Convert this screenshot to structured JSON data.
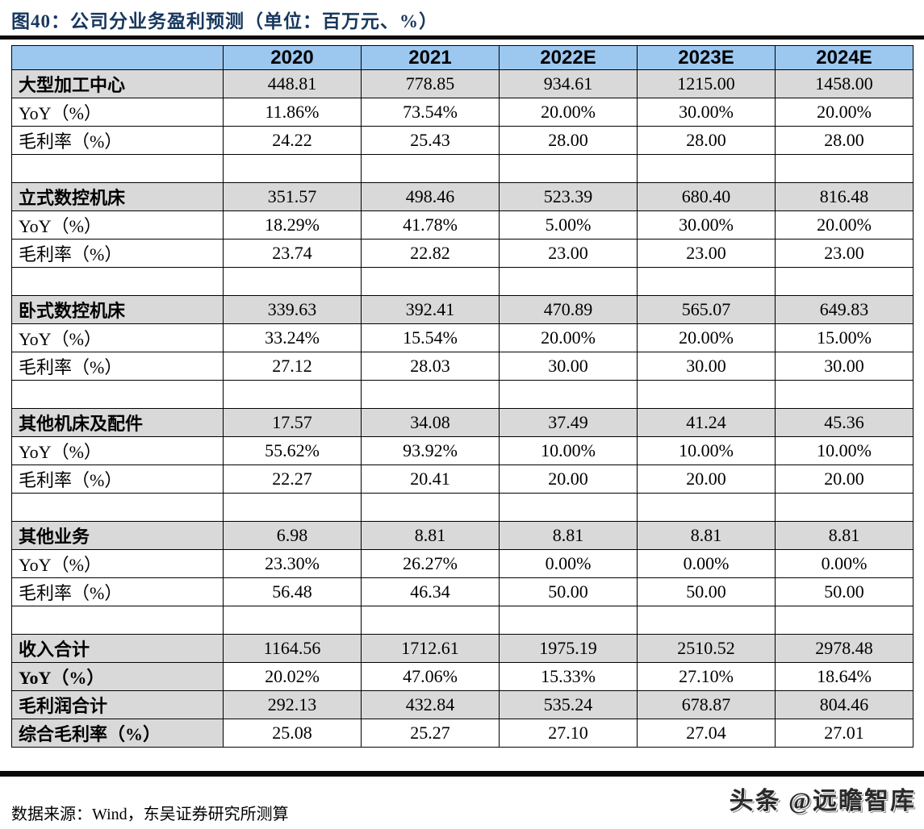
{
  "title": "图40：公司分业务盈利预测（单位：百万元、%）",
  "table": {
    "rows": [
      {
        "type": "header",
        "cells": [
          "",
          "2020",
          "2021",
          "2022E",
          "2023E",
          "2024E"
        ]
      },
      {
        "type": "section-head",
        "cells": [
          "大型加工中心",
          "448.81",
          "778.85",
          "934.61",
          "1215.00",
          "1458.00"
        ]
      },
      {
        "type": "data",
        "cells": [
          "YoY（%）",
          "11.86%",
          "73.54%",
          "20.00%",
          "30.00%",
          "20.00%"
        ]
      },
      {
        "type": "data",
        "cells": [
          "毛利率（%）",
          "24.22",
          "25.43",
          "28.00",
          "28.00",
          "28.00"
        ]
      },
      {
        "type": "spacer",
        "cells": [
          "",
          "",
          "",
          "",
          "",
          ""
        ]
      },
      {
        "type": "section-head",
        "cells": [
          "立式数控机床",
          "351.57",
          "498.46",
          "523.39",
          "680.40",
          "816.48"
        ]
      },
      {
        "type": "data",
        "cells": [
          "YoY（%）",
          "18.29%",
          "41.78%",
          "5.00%",
          "30.00%",
          "20.00%"
        ]
      },
      {
        "type": "data",
        "cells": [
          "毛利率（%）",
          "23.74",
          "22.82",
          "23.00",
          "23.00",
          "23.00"
        ]
      },
      {
        "type": "spacer",
        "cells": [
          "",
          "",
          "",
          "",
          "",
          ""
        ]
      },
      {
        "type": "section-head",
        "cells": [
          "卧式数控机床",
          "339.63",
          "392.41",
          "470.89",
          "565.07",
          "649.83"
        ]
      },
      {
        "type": "data",
        "cells": [
          "YoY（%）",
          "33.24%",
          "15.54%",
          "20.00%",
          "20.00%",
          "15.00%"
        ]
      },
      {
        "type": "data",
        "cells": [
          "毛利率（%）",
          "27.12",
          "28.03",
          "30.00",
          "30.00",
          "30.00"
        ]
      },
      {
        "type": "spacer",
        "cells": [
          "",
          "",
          "",
          "",
          "",
          ""
        ]
      },
      {
        "type": "section-head",
        "cells": [
          "其他机床及配件",
          "17.57",
          "34.08",
          "37.49",
          "41.24",
          "45.36"
        ]
      },
      {
        "type": "data",
        "cells": [
          "YoY（%）",
          "55.62%",
          "93.92%",
          "10.00%",
          "10.00%",
          "10.00%"
        ]
      },
      {
        "type": "data",
        "cells": [
          "毛利率（%）",
          "22.27",
          "20.41",
          "20.00",
          "20.00",
          "20.00"
        ]
      },
      {
        "type": "spacer",
        "cells": [
          "",
          "",
          "",
          "",
          "",
          ""
        ]
      },
      {
        "type": "section-head",
        "cells": [
          "其他业务",
          "6.98",
          "8.81",
          "8.81",
          "8.81",
          "8.81"
        ]
      },
      {
        "type": "data",
        "cells": [
          "YoY（%）",
          "23.30%",
          "26.27%",
          "0.00%",
          "0.00%",
          "0.00%"
        ]
      },
      {
        "type": "data",
        "cells": [
          "毛利率（%）",
          "56.48",
          "46.34",
          "50.00",
          "50.00",
          "50.00"
        ]
      },
      {
        "type": "spacer",
        "cells": [
          "",
          "",
          "",
          "",
          "",
          ""
        ]
      },
      {
        "type": "total-gray",
        "cells": [
          "收入合计",
          "1164.56",
          "1712.61",
          "1975.19",
          "2510.52",
          "2978.48"
        ]
      },
      {
        "type": "total-white",
        "cells": [
          "YoY（%）",
          "20.02%",
          "47.06%",
          "15.33%",
          "27.10%",
          "18.64%"
        ]
      },
      {
        "type": "total-gray",
        "cells": [
          "毛利润合计",
          "292.13",
          "432.84",
          "535.24",
          "678.87",
          "804.46"
        ]
      },
      {
        "type": "total-white",
        "cells": [
          "综合毛利率（%）",
          "25.08",
          "25.27",
          "27.10",
          "27.04",
          "27.01"
        ]
      }
    ]
  },
  "footer": {
    "source": "数据来源：Wind，东吴证券研究所测算",
    "watermark": "头条 @远瞻智库"
  },
  "colors": {
    "header_blue": "#9CC8F0",
    "row_gray": "#D9D9D9",
    "title_navy": "#17375E",
    "rule_black": "#0A0A0A"
  }
}
